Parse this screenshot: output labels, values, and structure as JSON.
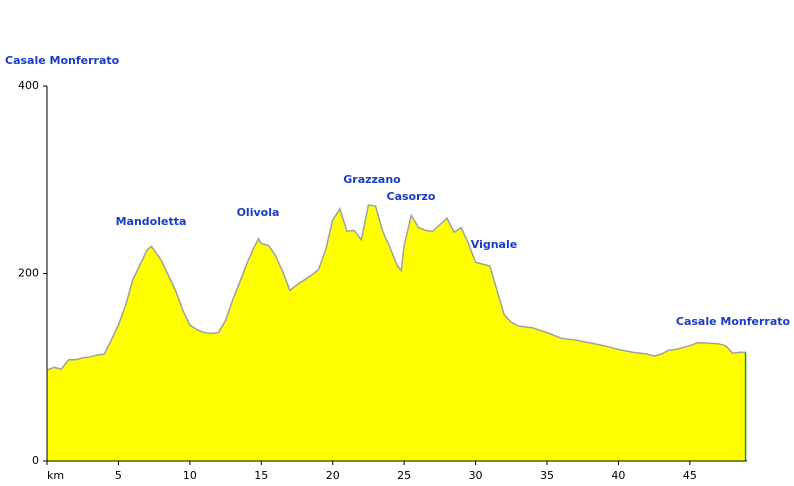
{
  "chart_data": {
    "type": "area",
    "annotations": [
      "Casale Monferrato",
      "Mandoletta",
      "Olivola",
      "Grazzano",
      "Casorzo",
      "Vignale",
      "Casale Monferrato"
    ],
    "x": [
      0,
      0.5,
      1,
      1.5,
      2,
      2.5,
      3,
      3.5,
      4,
      4.5,
      5,
      5.5,
      6,
      6.5,
      7,
      7.3,
      7.5,
      8,
      8.5,
      9,
      9.5,
      10,
      10.5,
      11,
      11.5,
      12,
      12.5,
      13,
      13.5,
      14,
      14.5,
      14.8,
      15,
      15.5,
      16,
      16.5,
      17,
      17.5,
      18,
      18.5,
      19,
      19.5,
      20,
      20.5,
      21,
      21.5,
      22,
      22.5,
      23,
      23.5,
      24,
      24.5,
      24.8,
      25,
      25.5,
      26,
      26.5,
      27,
      27.5,
      28,
      28.5,
      29,
      29.5,
      30,
      30.5,
      31,
      31.5,
      32,
      32.5,
      33,
      34,
      35,
      36,
      37,
      38,
      39,
      40,
      41,
      42,
      42.5,
      43,
      43.5,
      44,
      45,
      45.5,
      46,
      47,
      47.5,
      48,
      48.5,
      48.9
    ],
    "values": [
      97,
      100,
      98,
      108,
      108,
      110,
      111,
      113,
      114,
      129,
      145,
      166,
      193,
      209,
      225,
      229,
      225,
      214,
      198,
      182,
      161,
      145,
      140,
      137,
      136,
      137,
      150,
      172,
      191,
      211,
      228,
      237,
      232,
      230,
      219,
      202,
      182,
      188,
      193,
      198,
      204,
      225,
      257,
      269,
      245,
      246,
      236,
      273,
      272,
      245,
      228,
      209,
      203,
      230,
      262,
      249,
      246,
      245,
      252,
      259,
      244,
      249,
      232,
      212,
      210,
      208,
      182,
      156,
      148,
      144,
      142,
      137,
      131,
      129,
      126,
      123,
      119,
      116,
      114,
      112,
      114,
      118,
      119,
      123,
      126,
      126,
      125,
      123,
      115,
      116,
      116
    ],
    "color": "#ffff00",
    "line_color": "#a0a0a0",
    "xlim": [
      0,
      49
    ],
    "ylim": [
      0,
      400
    ],
    "xticks": [
      {
        "value": 0,
        "label": "km"
      },
      5,
      10,
      15,
      20,
      25,
      30,
      35,
      40,
      45
    ],
    "yticks": [
      0,
      200,
      400
    ]
  }
}
